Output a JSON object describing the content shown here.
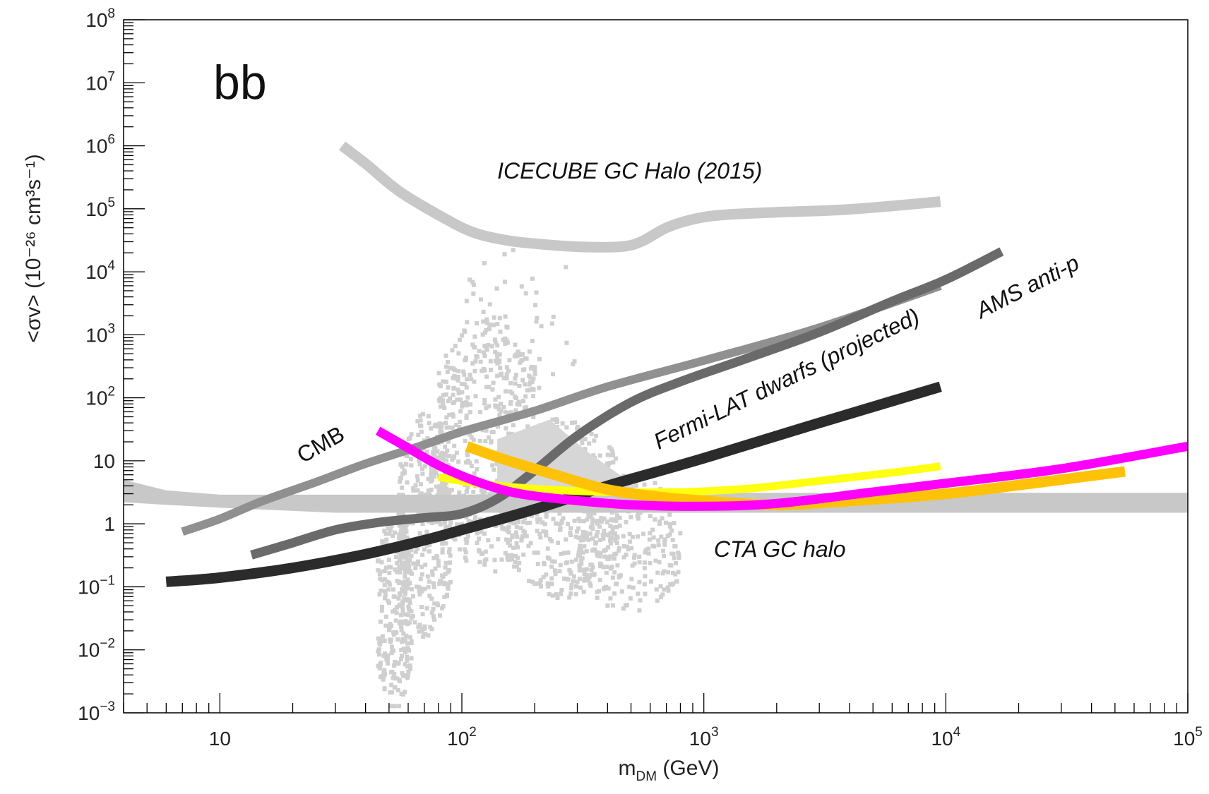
{
  "chart_data": {
    "type": "line",
    "title": "",
    "panel_label": "bb",
    "xlabel": {
      "main": "m",
      "sub": "DM",
      "rest": " (GeV)"
    },
    "ylabel": "<σv> (10⁻²⁶ cm³s⁻¹)",
    "xscale": "log",
    "yscale": "log",
    "xlim": [
      4,
      100000
    ],
    "ylim": [
      0.001,
      100000000
    ],
    "grid": false,
    "x_ticks": [
      {
        "value": 10,
        "base": "10",
        "exp": ""
      },
      {
        "value": 100,
        "base": "10",
        "exp": "2"
      },
      {
        "value": 1000,
        "base": "10",
        "exp": "3"
      },
      {
        "value": 10000,
        "base": "10",
        "exp": "4"
      },
      {
        "value": 100000,
        "base": "10",
        "exp": "5"
      }
    ],
    "y_ticks": [
      {
        "value": 0.001,
        "base": "10",
        "exp": "−3"
      },
      {
        "value": 0.01,
        "base": "10",
        "exp": "−2"
      },
      {
        "value": 0.1,
        "base": "10",
        "exp": "−1"
      },
      {
        "value": 1,
        "base": "1",
        "exp": ""
      },
      {
        "value": 10,
        "base": "10",
        "exp": ""
      },
      {
        "value": 100,
        "base": "10",
        "exp": "2"
      },
      {
        "value": 1000,
        "base": "10",
        "exp": "3"
      },
      {
        "value": 10000,
        "base": "10",
        "exp": "4"
      },
      {
        "value": 100000,
        "base": "10",
        "exp": "5"
      },
      {
        "value": 1000000,
        "base": "10",
        "exp": "6"
      },
      {
        "value": 10000000,
        "base": "10",
        "exp": "7"
      },
      {
        "value": 100000000,
        "base": "10",
        "exp": "8"
      }
    ],
    "series": [
      {
        "name": "CTA GC halo (band)",
        "color": "#c8c8c8",
        "kind": "band",
        "upper": [
          [
            4,
            5.0
          ],
          [
            6,
            3.4
          ],
          [
            10,
            2.9
          ],
          [
            30,
            2.9
          ],
          [
            100,
            2.9
          ],
          [
            1000,
            3.1
          ],
          [
            100000,
            3.1
          ]
        ],
        "lower": [
          [
            4,
            2.2
          ],
          [
            6,
            2.0
          ],
          [
            10,
            1.8
          ],
          [
            30,
            1.5
          ],
          [
            100,
            1.5
          ],
          [
            1000,
            1.5
          ],
          [
            100000,
            1.5
          ]
        ]
      },
      {
        "name": "ICECUBE GC Halo (2015)",
        "color": "#c8c8c8",
        "width": 15,
        "points": [
          [
            32,
            1000000
          ],
          [
            40,
            520000
          ],
          [
            55,
            190000
          ],
          [
            80,
            80000
          ],
          [
            110,
            43000
          ],
          [
            150,
            32000
          ],
          [
            200,
            28000
          ],
          [
            300,
            25000
          ],
          [
            450,
            25000
          ],
          [
            550,
            30000
          ],
          [
            700,
            50000
          ],
          [
            900,
            68000
          ],
          [
            1200,
            80000
          ],
          [
            2000,
            88000
          ],
          [
            4000,
            98000
          ],
          [
            9500,
            130000
          ]
        ]
      },
      {
        "name": "CMB",
        "color": "#909090",
        "width": 12,
        "points": [
          [
            7,
            0.75
          ],
          [
            10,
            1.2
          ],
          [
            15,
            2.3
          ],
          [
            25,
            4.6
          ],
          [
            40,
            9
          ],
          [
            70,
            18
          ],
          [
            100,
            29
          ],
          [
            200,
            62
          ],
          [
            400,
            150
          ],
          [
            1000,
            390
          ],
          [
            3000,
            1300
          ],
          [
            9500,
            6000
          ]
        ]
      },
      {
        "name": "AMS anti-p",
        "color": "#6a6a6a",
        "width": 13,
        "points": [
          [
            13.5,
            0.32
          ],
          [
            20,
            0.5
          ],
          [
            30,
            0.8
          ],
          [
            45,
            1.05
          ],
          [
            70,
            1.25
          ],
          [
            100,
            1.45
          ],
          [
            140,
            2.5
          ],
          [
            200,
            7
          ],
          [
            300,
            25
          ],
          [
            500,
            85
          ],
          [
            800,
            180
          ],
          [
            1500,
            420
          ],
          [
            3000,
            1100
          ],
          [
            6000,
            3400
          ],
          [
            10000,
            7500
          ],
          [
            17000,
            21000
          ]
        ]
      },
      {
        "name": "Fermi-LAT dwarfs (projected)",
        "color": "#2b2b2b",
        "width": 15,
        "points": [
          [
            6,
            0.12
          ],
          [
            10,
            0.14
          ],
          [
            20,
            0.2
          ],
          [
            40,
            0.33
          ],
          [
            70,
            0.55
          ],
          [
            100,
            0.8
          ],
          [
            200,
            1.7
          ],
          [
            400,
            4
          ],
          [
            1000,
            11
          ],
          [
            3000,
            40
          ],
          [
            9500,
            150
          ]
        ]
      },
      {
        "name": "yellow curve",
        "color": "#ffff10",
        "width": 11,
        "points": [
          [
            80,
            5.5
          ],
          [
            120,
            4.3
          ],
          [
            200,
            3.6
          ],
          [
            400,
            3.2
          ],
          [
            800,
            3.2
          ],
          [
            1500,
            3.6
          ],
          [
            3000,
            4.8
          ],
          [
            6000,
            6.5
          ],
          [
            9500,
            8.2
          ]
        ]
      },
      {
        "name": "orange curve",
        "color": "#ffc208",
        "width": 15,
        "points": [
          [
            105,
            17
          ],
          [
            150,
            10.5
          ],
          [
            250,
            5.8
          ],
          [
            400,
            3.5
          ],
          [
            700,
            2.6
          ],
          [
            1200,
            2.2
          ],
          [
            2000,
            2.0
          ],
          [
            4000,
            2.3
          ],
          [
            10000,
            3.0
          ],
          [
            25000,
            4.6
          ],
          [
            55000,
            6.8
          ]
        ]
      },
      {
        "name": "magenta curve",
        "color": "#ff00ff",
        "width": 13,
        "points": [
          [
            45,
            30
          ],
          [
            60,
            16
          ],
          [
            80,
            8.5
          ],
          [
            110,
            5
          ],
          [
            160,
            3.2
          ],
          [
            250,
            2.5
          ],
          [
            500,
            2.0
          ],
          [
            1000,
            1.9
          ],
          [
            2000,
            2.1
          ],
          [
            5000,
            3.2
          ],
          [
            10000,
            4.4
          ],
          [
            30000,
            7.5
          ],
          [
            100000,
            17
          ]
        ]
      }
    ],
    "annotations": [
      {
        "text": "ICECUBE GC Halo (2015)",
        "x": 140,
        "y": 300000,
        "rotate": 0
      },
      {
        "text": "AMS anti-p",
        "x": 14000,
        "y": 1800,
        "rotate": -27
      },
      {
        "text": "Fermi-LAT dwarfs (projected)",
        "x": 650,
        "y": 15,
        "rotate": -26
      },
      {
        "text": "CMB",
        "x": 22,
        "y": 9,
        "rotate": -30
      },
      {
        "text": "CTA GC halo",
        "x": 1100,
        "y": 0.3,
        "rotate": 0
      }
    ]
  }
}
